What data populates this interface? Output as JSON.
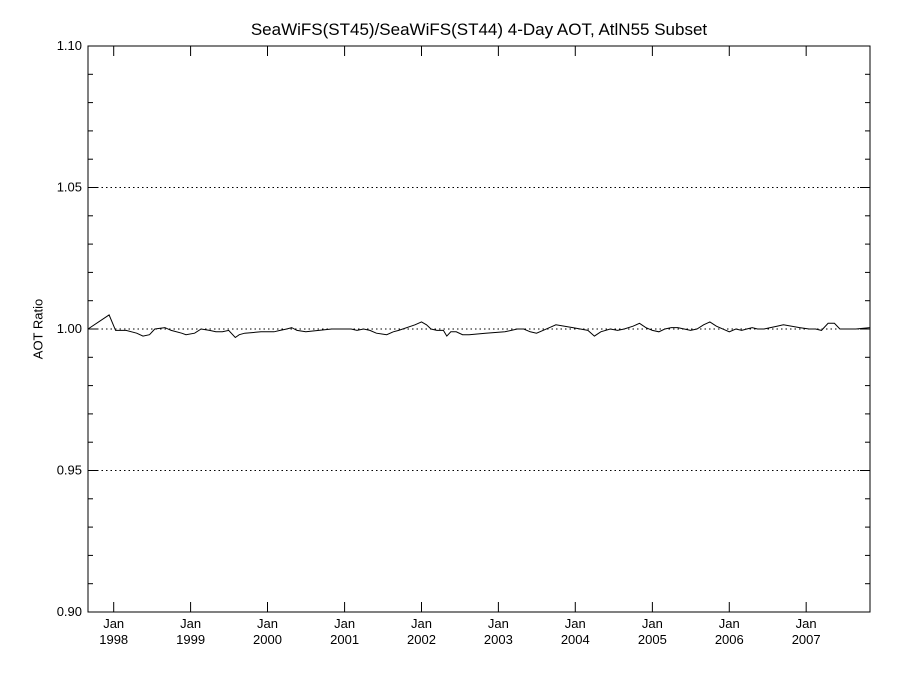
{
  "chart_data": {
    "type": "line",
    "title": "SeaWiFS(ST45)/SeaWiFS(ST44) 4-Day AOT, AtlN55 Subset",
    "xlabel": "",
    "ylabel": "AOT Ratio",
    "ylim": [
      0.9,
      1.1
    ],
    "xlim": [
      "1997-09-01",
      "2007-10-31"
    ],
    "yticks": [
      "0.90",
      "0.95",
      "1.00",
      "1.05",
      "1.10"
    ],
    "xticks": [
      {
        "month": "Jan",
        "year": "1998",
        "date": "1998-01-01"
      },
      {
        "month": "Jan",
        "year": "1999",
        "date": "1999-01-01"
      },
      {
        "month": "Jan",
        "year": "2000",
        "date": "2000-01-01"
      },
      {
        "month": "Jan",
        "year": "2001",
        "date": "2001-01-01"
      },
      {
        "month": "Jan",
        "year": "2002",
        "date": "2002-01-01"
      },
      {
        "month": "Jan",
        "year": "2003",
        "date": "2003-01-01"
      },
      {
        "month": "Jan",
        "year": "2004",
        "date": "2004-01-01"
      },
      {
        "month": "Jan",
        "year": "2005",
        "date": "2005-01-01"
      },
      {
        "month": "Jan",
        "year": "2006",
        "date": "2006-01-01"
      },
      {
        "month": "Jan",
        "year": "2007",
        "date": "2007-01-01"
      }
    ],
    "grid": "horizontal dotted at 0.95, 1.00, 1.05",
    "gridlines": [
      0.95,
      1.0,
      1.05
    ],
    "series": [
      {
        "x": [
          "1997-09-01",
          "1997-12-10",
          "1998-01-10",
          "1998-03-01",
          "1998-04-20",
          "1998-05-20",
          "1998-06-20",
          "1998-07-15",
          "1998-09-01",
          "1998-10-01",
          "1998-11-20",
          "1998-12-10",
          "1999-01-20",
          "1999-02-20",
          "1999-04-01",
          "1999-05-01",
          "1999-06-01",
          "1999-07-01",
          "1999-08-01",
          "1999-08-20",
          "1999-09-15",
          "1999-12-01",
          "2000-02-01",
          "2000-03-01",
          "2000-04-01",
          "2000-04-25",
          "2000-05-20",
          "2000-07-01",
          "2000-09-01",
          "2000-11-01",
          "2000-12-01",
          "2001-02-01",
          "2001-03-01",
          "2001-04-01",
          "2001-05-01",
          "2001-06-01",
          "2001-07-20",
          "2001-08-20",
          "2001-09-15",
          "2001-12-01",
          "2002-01-01",
          "2002-01-25",
          "2002-02-15",
          "2002-03-15",
          "2002-04-15",
          "2002-05-01",
          "2002-05-20",
          "2002-06-15",
          "2002-07-15",
          "2002-08-15",
          "2002-11-01",
          "2003-02-01",
          "2003-04-01",
          "2003-05-01",
          "2003-06-01",
          "2003-07-01",
          "2003-08-01",
          "2003-09-01",
          "2003-10-01",
          "2003-12-20",
          "2004-03-01",
          "2004-04-01",
          "2004-05-01",
          "2004-06-15",
          "2004-07-20",
          "2004-08-20",
          "2004-10-01",
          "2004-11-01",
          "2004-12-01",
          "2005-01-01",
          "2005-02-01",
          "2005-03-01",
          "2005-04-01",
          "2005-05-01",
          "2005-06-01",
          "2005-07-01",
          "2005-08-01",
          "2005-09-01",
          "2005-10-01",
          "2005-11-01",
          "2006-01-01",
          "2006-02-01",
          "2006-03-01",
          "2006-03-25",
          "2006-04-20",
          "2006-05-15",
          "2006-06-15",
          "2006-07-15",
          "2006-08-15",
          "2006-09-15",
          "2006-12-01",
          "2007-01-15",
          "2007-02-15",
          "2007-03-15",
          "2007-04-15",
          "2007-05-15",
          "2007-06-10",
          "2007-07-10",
          "2007-08-01",
          "2007-08-25",
          "2007-10-31"
        ],
        "values": [
          1.0,
          1.005,
          0.9995,
          0.9995,
          0.9985,
          0.9975,
          0.998,
          1.0,
          1.0005,
          0.9995,
          0.9985,
          0.998,
          0.9985,
          1.0,
          0.9995,
          0.999,
          0.999,
          0.9995,
          0.997,
          0.998,
          0.9985,
          0.999,
          0.999,
          0.9995,
          1.0,
          1.0005,
          0.9995,
          0.999,
          0.9995,
          1.0,
          1.0,
          1.0,
          0.9995,
          1.0,
          0.9995,
          0.9985,
          0.998,
          0.999,
          0.9995,
          1.0015,
          1.0025,
          1.0015,
          1.0,
          0.9995,
          0.9995,
          0.9975,
          0.999,
          0.999,
          0.998,
          0.998,
          0.9985,
          0.999,
          1.0,
          1.0,
          0.999,
          0.9985,
          0.9995,
          1.0005,
          1.0015,
          1.0005,
          0.9995,
          0.9975,
          0.999,
          1.0,
          0.9995,
          1.0,
          1.001,
          1.002,
          1.0005,
          0.9995,
          0.999,
          1.0,
          1.0005,
          1.0005,
          1.0,
          0.9995,
          1.0,
          1.0015,
          1.0025,
          1.001,
          0.999,
          1.0,
          0.9995,
          1.0,
          1.0005,
          1.0,
          1.0,
          1.0005,
          1.001,
          1.0015,
          1.0005,
          1.0,
          1.0,
          0.9995,
          1.002,
          1.002,
          1.0,
          1.0,
          1.0,
          1.0,
          1.0005
        ]
      }
    ]
  }
}
